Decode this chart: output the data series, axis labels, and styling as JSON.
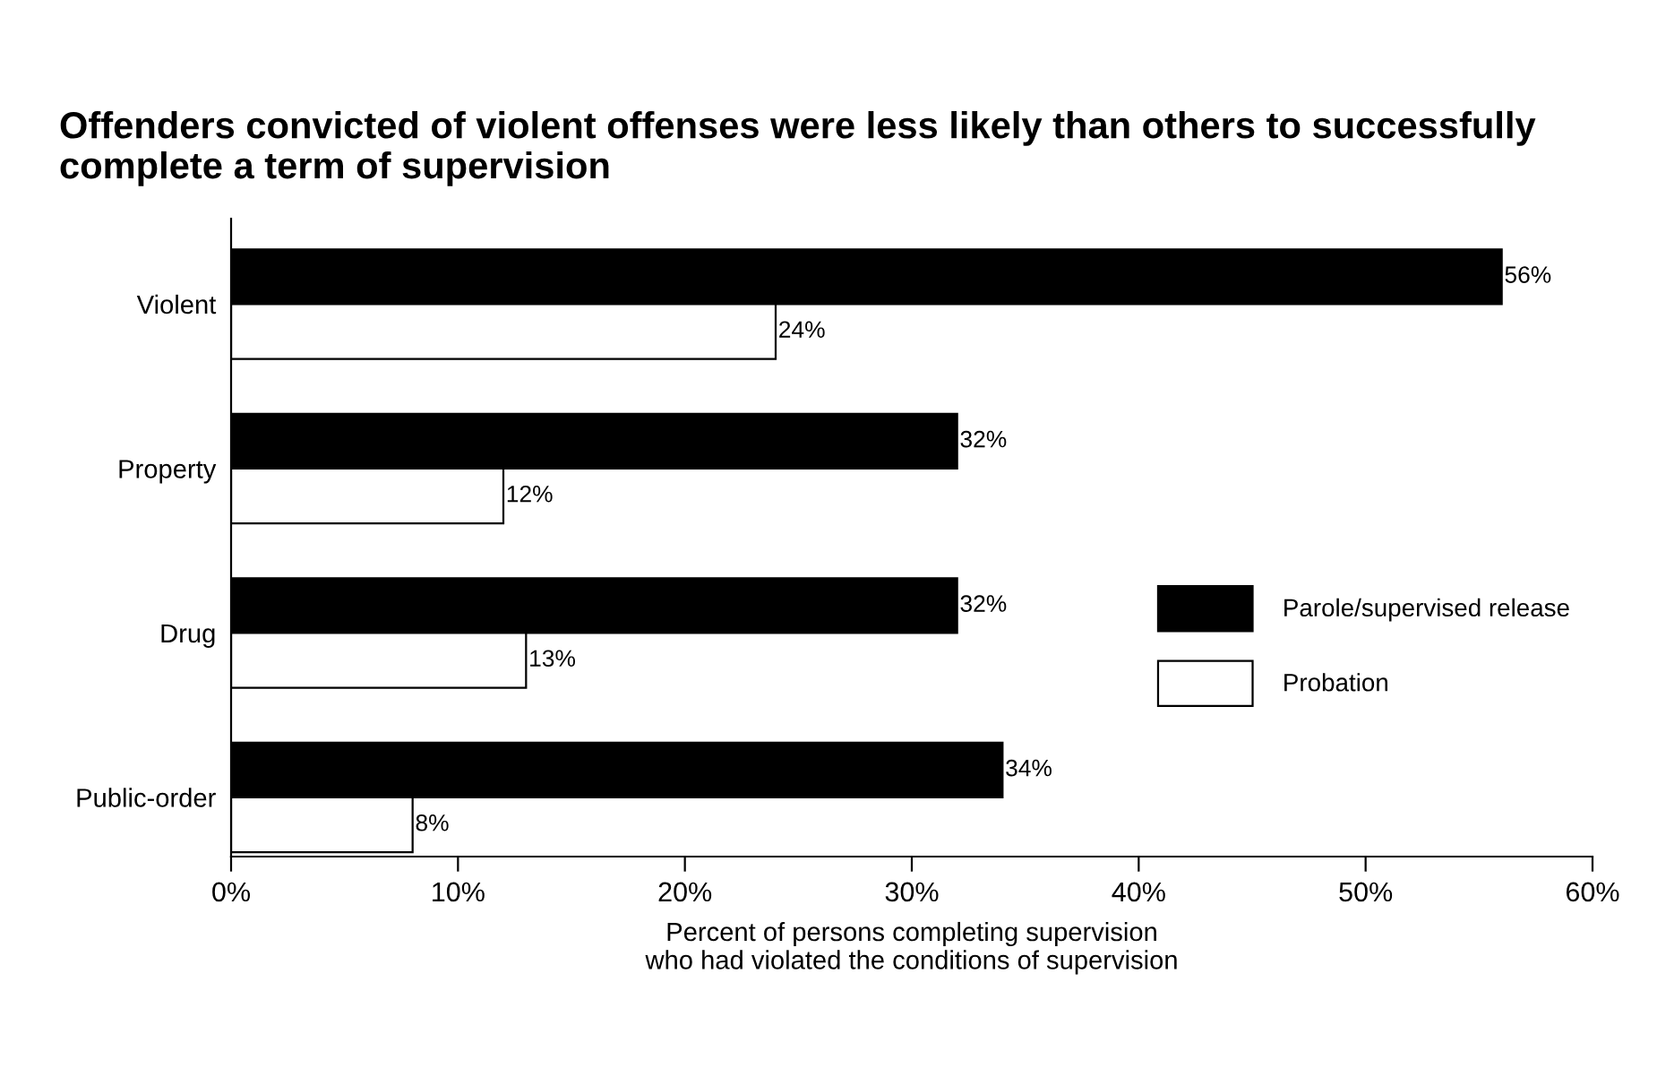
{
  "chart_data": {
    "type": "bar",
    "orientation": "horizontal",
    "title": "Offenders convicted of violent offenses were less likely than others to successfully complete a term of supervision",
    "xlabel": "Percent of persons completing supervision\nwho had violated the conditions of supervision",
    "categories": [
      "Violent",
      "Property",
      "Drug",
      "Public-order"
    ],
    "series": [
      {
        "name": "Parole/supervised release",
        "color": "#000000",
        "values": [
          56,
          32,
          32,
          34
        ],
        "value_labels": [
          "56%",
          "32%",
          "32%",
          "34%"
        ]
      },
      {
        "name": "Probation",
        "color": "#ffffff",
        "values": [
          24,
          12,
          13,
          8
        ],
        "value_labels": [
          "24%",
          "12%",
          "13%",
          "8%"
        ]
      }
    ],
    "xlim": [
      0,
      60
    ],
    "xticks": [
      {
        "value": 0,
        "label": "0%"
      },
      {
        "value": 10,
        "label": "10%"
      },
      {
        "value": 20,
        "label": "20%"
      },
      {
        "value": 30,
        "label": "30%"
      },
      {
        "value": 40,
        "label": "40%"
      },
      {
        "value": 50,
        "label": "50%"
      },
      {
        "value": 60,
        "label": "60%"
      }
    ],
    "legend": "right",
    "grid": false
  }
}
